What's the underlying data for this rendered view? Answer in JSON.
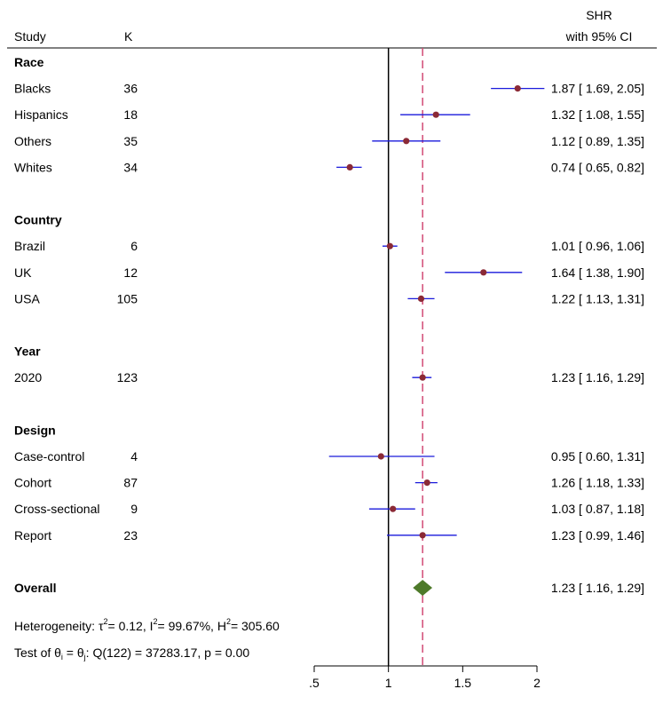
{
  "chart_data": {
    "type": "forest",
    "header": {
      "study_label": "Study",
      "k_label": "K",
      "effect_label_line1": "SHR",
      "effect_label_line2": "with 95% CI"
    },
    "x_ticks": [
      0.5,
      1,
      1.5,
      2
    ],
    "x_tick_labels": [
      ".5",
      "1",
      "1.5",
      "2"
    ],
    "xlim": [
      0.5,
      2.0
    ],
    "null_line": 1,
    "overall_line": 1.23,
    "rows": [
      {
        "kind": "group",
        "label": "Race"
      },
      {
        "kind": "study",
        "label": "Blacks",
        "k": "36",
        "est": 1.87,
        "lo": 1.69,
        "hi": 2.05,
        "ci_text": "1.87 [ 1.69,  2.05]"
      },
      {
        "kind": "study",
        "label": "Hispanics",
        "k": "18",
        "est": 1.32,
        "lo": 1.08,
        "hi": 1.55,
        "ci_text": "1.32 [ 1.08,  1.55]"
      },
      {
        "kind": "study",
        "label": "Others",
        "k": "35",
        "est": 1.12,
        "lo": 0.89,
        "hi": 1.35,
        "ci_text": "1.12 [ 0.89,  1.35]"
      },
      {
        "kind": "study",
        "label": "Whites",
        "k": "34",
        "est": 0.74,
        "lo": 0.65,
        "hi": 0.82,
        "ci_text": "0.74 [ 0.65,  0.82]"
      },
      {
        "kind": "blank"
      },
      {
        "kind": "group",
        "label": "Country"
      },
      {
        "kind": "study",
        "label": "Brazil",
        "k": "6",
        "est": 1.01,
        "lo": 0.96,
        "hi": 1.06,
        "ci_text": "1.01 [ 0.96,  1.06]"
      },
      {
        "kind": "study",
        "label": "UK",
        "k": "12",
        "est": 1.64,
        "lo": 1.38,
        "hi": 1.9,
        "ci_text": "1.64 [ 1.38,  1.90]"
      },
      {
        "kind": "study",
        "label": "USA",
        "k": "105",
        "est": 1.22,
        "lo": 1.13,
        "hi": 1.31,
        "ci_text": "1.22 [ 1.13,  1.31]"
      },
      {
        "kind": "blank"
      },
      {
        "kind": "group",
        "label": "Year"
      },
      {
        "kind": "study",
        "label": "2020",
        "k": "123",
        "est": 1.23,
        "lo": 1.16,
        "hi": 1.29,
        "ci_text": "1.23 [ 1.16,  1.29]"
      },
      {
        "kind": "blank"
      },
      {
        "kind": "group",
        "label": "Design"
      },
      {
        "kind": "study",
        "label": "Case-control",
        "k": "4",
        "est": 0.95,
        "lo": 0.6,
        "hi": 1.31,
        "ci_text": "0.95 [ 0.60,  1.31]"
      },
      {
        "kind": "study",
        "label": "Cohort",
        "k": "87",
        "est": 1.26,
        "lo": 1.18,
        "hi": 1.33,
        "ci_text": "1.26 [ 1.18,  1.33]"
      },
      {
        "kind": "study",
        "label": "Cross-sectional",
        "k": "9",
        "est": 1.03,
        "lo": 0.87,
        "hi": 1.18,
        "ci_text": "1.03 [ 0.87,  1.18]"
      },
      {
        "kind": "study",
        "label": "Report",
        "k": "23",
        "est": 1.23,
        "lo": 0.99,
        "hi": 1.46,
        "ci_text": "1.23 [ 0.99,  1.46]"
      },
      {
        "kind": "blank"
      },
      {
        "kind": "overall",
        "label": "Overall",
        "est": 1.23,
        "lo": 1.16,
        "hi": 1.29,
        "ci_text": "1.23 [ 1.16,  1.29]"
      }
    ],
    "heterogeneity": {
      "prefix": "Heterogeneity: τ",
      "tau2": "= 0.12, I",
      "i2": "= 99.67%, H",
      "h2": "= 305.60",
      "sup": "2"
    },
    "test_line": {
      "prefix": "Test of θ",
      "sub_i": "i",
      "middle": " = θ",
      "sub_j": "j",
      "rest": ": Q(122) = 37283.17, p = 0.00"
    },
    "colors": {
      "ci_line": "#1a1adb",
      "point": "#8b2a36",
      "overall_diamond": "#4e7a2a",
      "null_line": "#000000",
      "overall_line": "#d24a74",
      "text": "#000000"
    }
  }
}
